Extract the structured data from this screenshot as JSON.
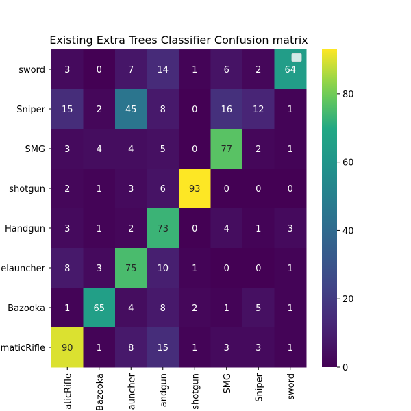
{
  "chart_data": {
    "type": "heatmap",
    "title": "Existing Extra Trees Classifier Confusion matrix",
    "row_labels": [
      "sword",
      "Sniper",
      "SMG",
      "shotgun",
      "Handgun",
      "elauncher",
      "Bazooka",
      "maticRifle"
    ],
    "col_labels": [
      "aticRifle",
      "Bazooka",
      "auncher",
      "andgun",
      "shotgun",
      "SMG",
      "Sniper",
      "sword"
    ],
    "values": [
      [
        3,
        0,
        7,
        14,
        1,
        6,
        2,
        64
      ],
      [
        15,
        2,
        45,
        8,
        0,
        16,
        12,
        1
      ],
      [
        3,
        4,
        4,
        5,
        0,
        77,
        2,
        1
      ],
      [
        2,
        1,
        3,
        6,
        93,
        0,
        0,
        0
      ],
      [
        3,
        1,
        2,
        73,
        0,
        4,
        1,
        3
      ],
      [
        8,
        3,
        75,
        10,
        1,
        0,
        0,
        1
      ],
      [
        1,
        65,
        4,
        8,
        2,
        1,
        5,
        1
      ],
      [
        90,
        1,
        8,
        15,
        1,
        3,
        3,
        1
      ]
    ],
    "colormap": "viridis",
    "vmin": 0,
    "vmax": 93,
    "colorbar_ticks": [
      0,
      20,
      40,
      60,
      80
    ],
    "legend_placement": "top-right",
    "grid": false
  }
}
